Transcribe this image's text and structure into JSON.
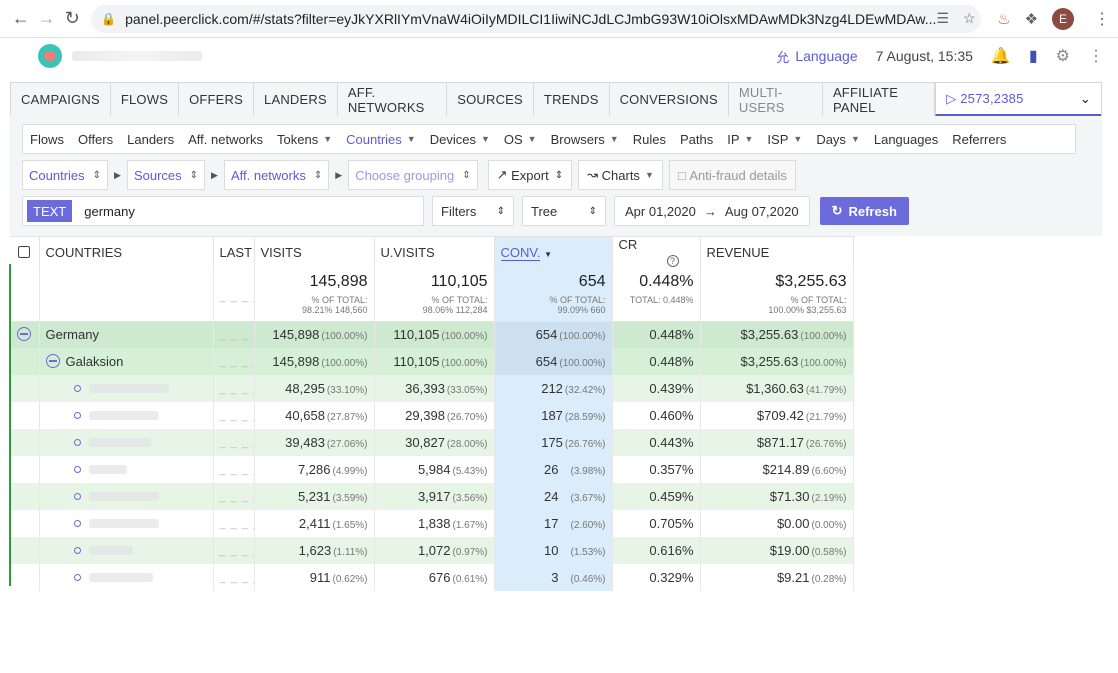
{
  "browser": {
    "url": "panel.peerclick.com/#/stats?filter=eyJkYXRlIYmVnaW4iOiIyMDILCI1IiwiNCJdLCJmbG93W10iOlsxMDAwMDk3Nzg4LDEwMDAw...",
    "avatar_letter": "E"
  },
  "header": {
    "language_label": "Language",
    "datetime": "7 August, 15:35"
  },
  "main_tabs": [
    {
      "label": "CAMPAIGNS",
      "dim": false
    },
    {
      "label": "FLOWS",
      "dim": false
    },
    {
      "label": "OFFERS",
      "dim": false
    },
    {
      "label": "LANDERS",
      "dim": false
    },
    {
      "label": "AFF. NETWORKS",
      "dim": false
    },
    {
      "label": "SOURCES",
      "dim": false
    },
    {
      "label": "TRENDS",
      "dim": false
    },
    {
      "label": "CONVERSIONS",
      "dim": false
    },
    {
      "label": "MULTI-USERS",
      "dim": true
    },
    {
      "label": "AFFILIATE PANEL",
      "dim": false
    }
  ],
  "campaign_select": {
    "value": "2573,2385"
  },
  "sub_tabs": [
    {
      "label": "Flows",
      "caret": false,
      "active": false
    },
    {
      "label": "Offers",
      "caret": false,
      "active": false
    },
    {
      "label": "Landers",
      "caret": false,
      "active": false
    },
    {
      "label": "Aff. networks",
      "caret": false,
      "active": false
    },
    {
      "label": "Tokens",
      "caret": true,
      "active": false
    },
    {
      "label": "Countries",
      "caret": true,
      "active": true
    },
    {
      "label": "Devices",
      "caret": true,
      "active": false
    },
    {
      "label": "OS",
      "caret": true,
      "active": false
    },
    {
      "label": "Browsers",
      "caret": true,
      "active": false
    },
    {
      "label": "Rules",
      "caret": false,
      "active": false
    },
    {
      "label": "Paths",
      "caret": false,
      "active": false
    },
    {
      "label": "IP",
      "caret": true,
      "active": false
    },
    {
      "label": "ISP",
      "caret": true,
      "active": false
    },
    {
      "label": "Days",
      "caret": true,
      "active": false
    },
    {
      "label": "Languages",
      "caret": false,
      "active": false
    },
    {
      "label": "Referrers",
      "caret": false,
      "active": false
    }
  ],
  "grouping": {
    "g1": "Countries",
    "g2": "Sources",
    "g3": "Aff. networks",
    "g4": "Choose grouping",
    "export": "Export",
    "charts": "Charts",
    "antifraud": "Anti-fraud details"
  },
  "filter_bar": {
    "chip": "TEXT",
    "search_value": "germany",
    "filters": "Filters",
    "view": "Tree",
    "date_from": "Apr 01,2020",
    "date_to": "Aug 07,2020",
    "refresh": "Refresh"
  },
  "table": {
    "headers": {
      "name": "COUNTRIES",
      "last": "LAST",
      "visits": "VISITS",
      "uvisits": "U.VISITS",
      "conv": "CONV.",
      "cr": "CR",
      "revenue": "REVENUE"
    },
    "totals": {
      "last": "_ _ _ _",
      "visits": "145,898",
      "visits_sub1": "% OF TOTAL:",
      "visits_sub2": "98.21% 148,560",
      "uvisits": "110,105",
      "uvisits_sub1": "% OF TOTAL:",
      "uvisits_sub2": "98.06% 112,284",
      "conv": "654",
      "conv_sub1": "% OF TOTAL:",
      "conv_sub2": "99.09% 660",
      "cr": "0.448%",
      "cr_sub": "TOTAL: 0.448%",
      "revenue": "$3,255.63",
      "revenue_sub1": "% OF TOTAL:",
      "revenue_sub2": "100.00% $3,255.63"
    },
    "rows": [
      {
        "level": 1,
        "name": "Germany",
        "last": "_ _ _ _",
        "visits": "145,898",
        "visits_pct": "(100.00%)",
        "uvisits": "110,105",
        "uvisits_pct": "(100.00%)",
        "conv": "654",
        "conv_pct": "(100.00%)",
        "cr": "0.448%",
        "revenue": "$3,255.63",
        "revenue_pct": "(100.00%)"
      },
      {
        "level": 2,
        "name": "Galaksion",
        "last": "_ _ _ _",
        "visits": "145,898",
        "visits_pct": "(100.00%)",
        "uvisits": "110,105",
        "uvisits_pct": "(100.00%)",
        "conv": "654",
        "conv_pct": "(100.00%)",
        "cr": "0.448%",
        "revenue": "$3,255.63",
        "revenue_pct": "(100.00%)"
      },
      {
        "level": 3,
        "name": "",
        "last": "_ _ _ _",
        "visits": "48,295",
        "visits_pct": "(33.10%)",
        "uvisits": "36,393",
        "uvisits_pct": "(33.05%)",
        "conv": "212",
        "conv_pct": "(32.42%)",
        "cr": "0.439%",
        "revenue": "$1,360.63",
        "revenue_pct": "(41.79%)"
      },
      {
        "level": 3,
        "name": "",
        "last": "_ _ _ _",
        "visits": "40,658",
        "visits_pct": "(27.87%)",
        "uvisits": "29,398",
        "uvisits_pct": "(26.70%)",
        "conv": "187",
        "conv_pct": "(28.59%)",
        "cr": "0.460%",
        "revenue": "$709.42",
        "revenue_pct": "(21.79%)"
      },
      {
        "level": 3,
        "name": "",
        "last": "_ _ _ _",
        "visits": "39,483",
        "visits_pct": "(27.06%)",
        "uvisits": "30,827",
        "uvisits_pct": "(28.00%)",
        "conv": "175",
        "conv_pct": "(26.76%)",
        "cr": "0.443%",
        "revenue": "$871.17",
        "revenue_pct": "(26.76%)"
      },
      {
        "level": 3,
        "name": "",
        "last": "_ _ _ _",
        "visits": "7,286",
        "visits_pct": "(4.99%)",
        "uvisits": "5,984",
        "uvisits_pct": "(5.43%)",
        "conv": "26",
        "conv_pct": "(3.98%)",
        "cr": "0.357%",
        "revenue": "$214.89",
        "revenue_pct": "(6.60%)"
      },
      {
        "level": 3,
        "name": "",
        "last": "_ _ _ _",
        "visits": "5,231",
        "visits_pct": "(3.59%)",
        "uvisits": "3,917",
        "uvisits_pct": "(3.56%)",
        "conv": "24",
        "conv_pct": "(3.67%)",
        "cr": "0.459%",
        "revenue": "$71.30",
        "revenue_pct": "(2.19%)"
      },
      {
        "level": 3,
        "name": "",
        "last": "_ _ _ _",
        "visits": "2,411",
        "visits_pct": "(1.65%)",
        "uvisits": "1,838",
        "uvisits_pct": "(1.67%)",
        "conv": "17",
        "conv_pct": "(2.60%)",
        "cr": "0.705%",
        "revenue": "$0.00",
        "revenue_pct": "(0.00%)"
      },
      {
        "level": 3,
        "name": "",
        "last": "_ _ _ _",
        "visits": "1,623",
        "visits_pct": "(1.11%)",
        "uvisits": "1,072",
        "uvisits_pct": "(0.97%)",
        "conv": "10",
        "conv_pct": "(1.53%)",
        "cr": "0.616%",
        "revenue": "$19.00",
        "revenue_pct": "(0.58%)"
      },
      {
        "level": 3,
        "name": "",
        "last": "_ _ _ _",
        "visits": "911",
        "visits_pct": "(0.62%)",
        "uvisits": "676",
        "uvisits_pct": "(0.61%)",
        "conv": "3",
        "conv_pct": "(0.46%)",
        "cr": "0.329%",
        "revenue": "$9.21",
        "revenue_pct": "(0.28%)"
      }
    ]
  }
}
